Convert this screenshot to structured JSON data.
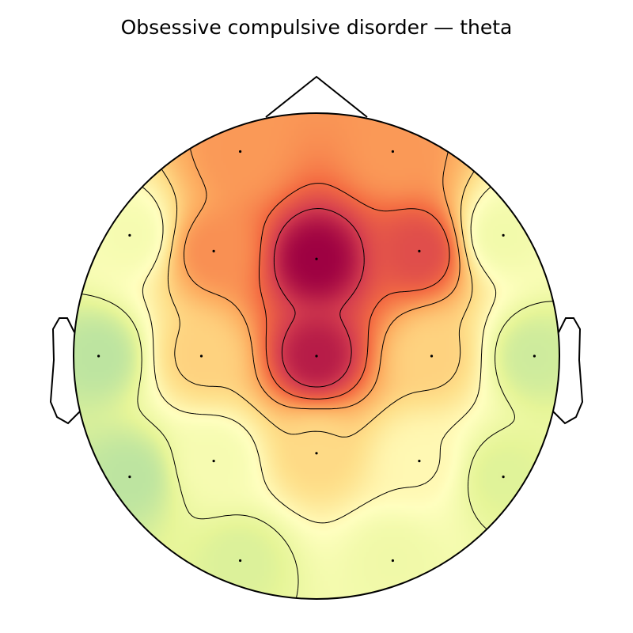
{
  "chart_data": {
    "type": "heatmap",
    "title": "Obsessive compulsive disorder — theta",
    "colormap": "Spectral_r",
    "colorbar": false,
    "contour_levels": 6,
    "head_outline": {
      "nose": true,
      "ears": true
    },
    "sensors": [
      {
        "x": -0.314,
        "y": 0.842,
        "value": 0.64
      },
      {
        "x": 0.314,
        "y": 0.842,
        "value": 0.64
      },
      {
        "x": -0.769,
        "y": 0.497,
        "value": 0.28
      },
      {
        "x": -0.423,
        "y": 0.432,
        "value": 0.66
      },
      {
        "x": 0.0,
        "y": 0.4,
        "value": 1.0
      },
      {
        "x": 0.423,
        "y": 0.432,
        "value": 0.82
      },
      {
        "x": 0.769,
        "y": 0.497,
        "value": 0.26
      },
      {
        "x": -0.897,
        "y": 0.0,
        "value": 0.1
      },
      {
        "x": -0.474,
        "y": 0.0,
        "value": 0.5
      },
      {
        "x": 0.0,
        "y": 0.0,
        "value": 0.94
      },
      {
        "x": 0.474,
        "y": 0.0,
        "value": 0.5
      },
      {
        "x": 0.897,
        "y": 0.0,
        "value": 0.14
      },
      {
        "x": -0.769,
        "y": -0.497,
        "value": 0.1
      },
      {
        "x": -0.423,
        "y": -0.432,
        "value": 0.28
      },
      {
        "x": 0.0,
        "y": -0.4,
        "value": 0.48
      },
      {
        "x": 0.423,
        "y": -0.432,
        "value": 0.36
      },
      {
        "x": 0.769,
        "y": -0.497,
        "value": 0.18
      },
      {
        "x": -0.314,
        "y": -0.842,
        "value": 0.17
      },
      {
        "x": 0.314,
        "y": -0.842,
        "value": 0.25
      }
    ]
  }
}
